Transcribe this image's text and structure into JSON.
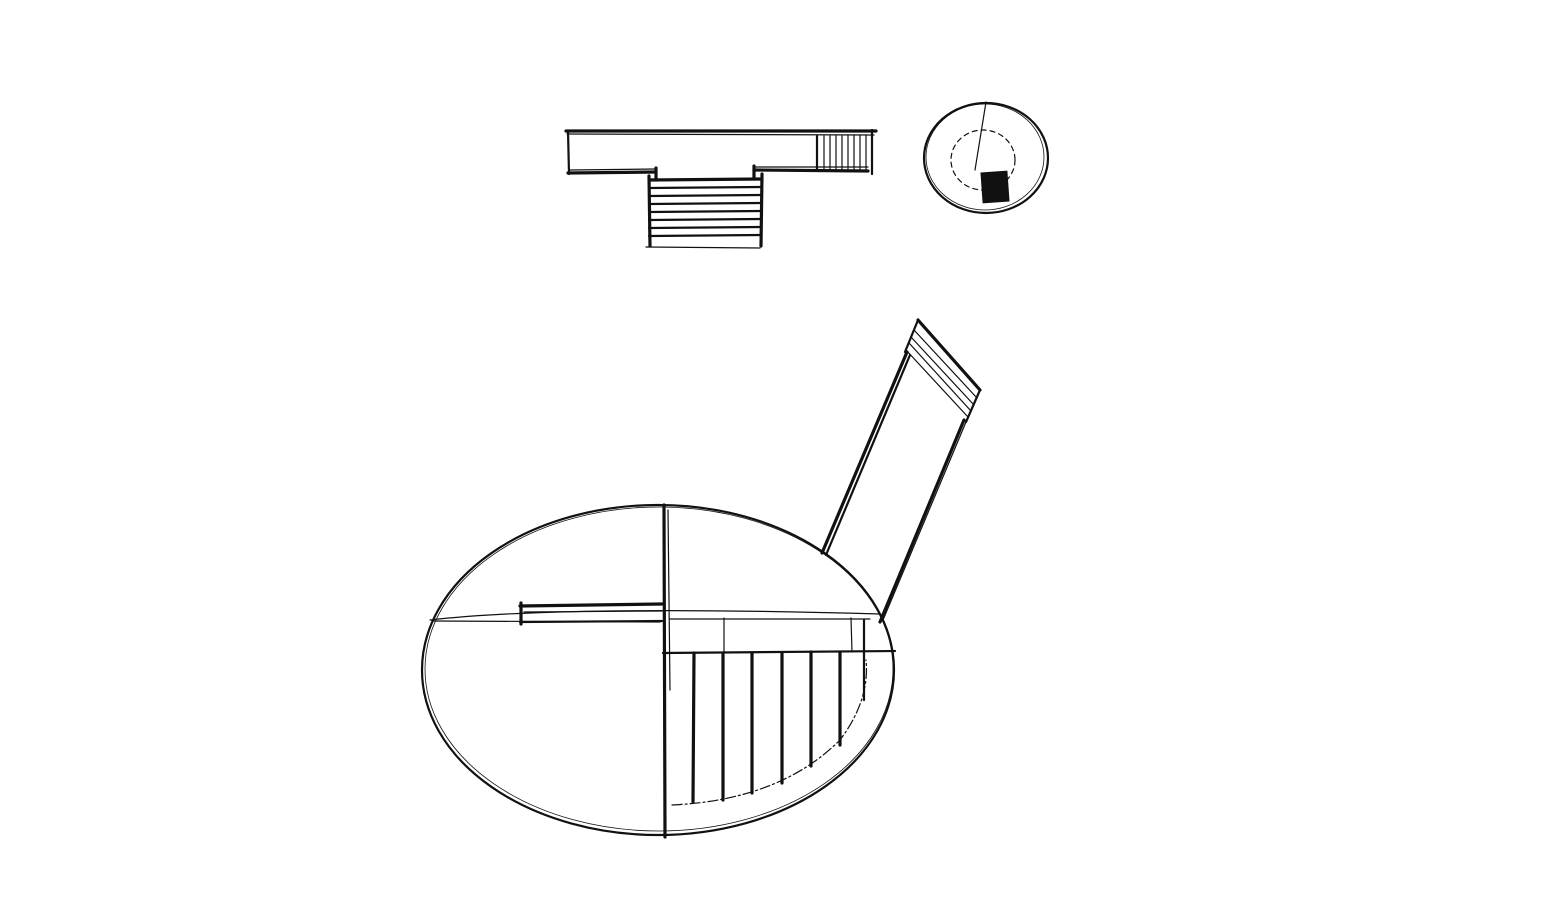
{
  "colors": {
    "background": "#ffffff",
    "ink": "#111111",
    "ink_light": "#333333"
  },
  "drawing": {
    "type": "architectural-pencil-sketch",
    "views": [
      "section-elevation",
      "small-plan",
      "main-plan"
    ]
  }
}
